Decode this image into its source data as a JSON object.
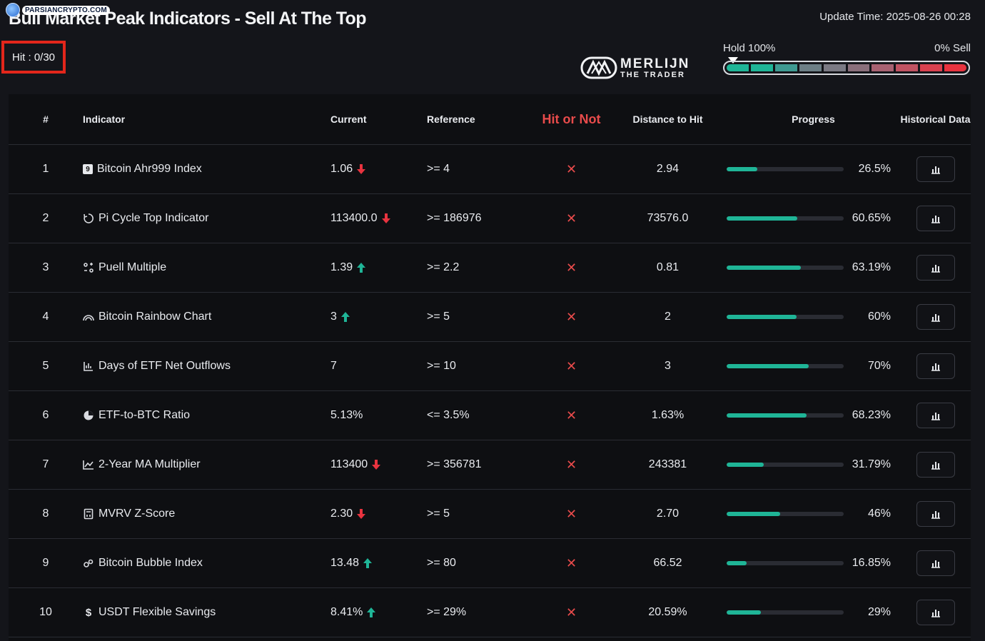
{
  "watermark": {
    "text": "PARSIANCRYPTO.COM",
    "icon": "bitcoin-globe-icon"
  },
  "header": {
    "title": "Bull Market Peak Indicators - Sell At The Top",
    "update_time": "Update Time: 2025-08-26 00:28",
    "hit_count": "Hit : 0/30"
  },
  "brand": {
    "line1": "MERLIJN",
    "line2": "THE TRADER"
  },
  "meter": {
    "hold_label": "Hold 100%",
    "sell_label": "0% Sell",
    "level": 0,
    "segment_colors": [
      "#1fb597",
      "#1fb597",
      "#3f9a92",
      "#6d7f86",
      "#7b7a84",
      "#8a6f7b",
      "#a86272",
      "#c05362",
      "#d9414f",
      "#e8333f"
    ]
  },
  "table": {
    "columns": [
      "#",
      "Indicator",
      "Current",
      "Reference",
      "Hit or Not",
      "Distance to Hit",
      "Progress",
      "Historical Data"
    ],
    "rows": [
      {
        "num": "1",
        "icon": "nine-badge-icon",
        "name": "Bitcoin Ahr999 Index",
        "current": "1.06",
        "trend": "down",
        "reference": ">= 4",
        "hit": "✕",
        "distance": "2.94",
        "progress": 26.5,
        "progress_label": "26.5%"
      },
      {
        "num": "2",
        "icon": "cycle-icon",
        "name": "Pi Cycle Top Indicator",
        "current": "113400.0",
        "trend": "down",
        "reference": ">= 186976",
        "hit": "✕",
        "distance": "73576.0",
        "progress": 60.65,
        "progress_label": "60.65%"
      },
      {
        "num": "3",
        "icon": "multiple-icon",
        "name": "Puell Multiple",
        "current": "1.39",
        "trend": "up",
        "reference": ">= 2.2",
        "hit": "✕",
        "distance": "0.81",
        "progress": 63.19,
        "progress_label": "63.19%"
      },
      {
        "num": "4",
        "icon": "rainbow-icon",
        "name": "Bitcoin Rainbow Chart",
        "current": "3",
        "trend": "up",
        "reference": ">= 5",
        "hit": "✕",
        "distance": "2",
        "progress": 60,
        "progress_label": "60%"
      },
      {
        "num": "5",
        "icon": "bar-chart-icon",
        "name": "Days of ETF Net Outflows",
        "current": "7",
        "trend": "none",
        "reference": ">= 10",
        "hit": "✕",
        "distance": "3",
        "progress": 70,
        "progress_label": "70%"
      },
      {
        "num": "6",
        "icon": "pie-chart-icon",
        "name": "ETF-to-BTC Ratio",
        "current": "5.13%",
        "trend": "none",
        "reference": "<= 3.5%",
        "hit": "✕",
        "distance": "1.63%",
        "progress": 68.23,
        "progress_label": "68.23%"
      },
      {
        "num": "7",
        "icon": "line-chart-icon",
        "name": "2-Year MA Multiplier",
        "current": "113400",
        "trend": "down",
        "reference": ">= 356781",
        "hit": "✕",
        "distance": "243381",
        "progress": 31.79,
        "progress_label": "31.79%"
      },
      {
        "num": "8",
        "icon": "calculator-icon",
        "name": "MVRV Z-Score",
        "current": "2.30",
        "trend": "down",
        "reference": ">= 5",
        "hit": "✕",
        "distance": "2.70",
        "progress": 46,
        "progress_label": "46%"
      },
      {
        "num": "9",
        "icon": "bubble-icon",
        "name": "Bitcoin Bubble Index",
        "current": "13.48",
        "trend": "up",
        "reference": ">= 80",
        "hit": "✕",
        "distance": "66.52",
        "progress": 16.85,
        "progress_label": "16.85%"
      },
      {
        "num": "10",
        "icon": "dollar-icon",
        "name": "USDT Flexible Savings",
        "current": "8.41%",
        "trend": "up",
        "reference": ">= 29%",
        "hit": "✕",
        "distance": "20.59%",
        "progress": 29,
        "progress_label": "29%"
      }
    ]
  },
  "colors": {
    "up": "#1fb597",
    "down": "#e8333f",
    "progress_fill": "#1fb597",
    "miss": "#e84b4b"
  }
}
